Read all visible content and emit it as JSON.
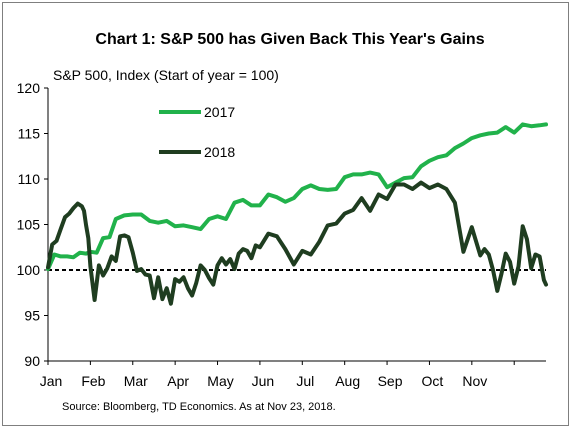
{
  "chart_data": {
    "type": "line",
    "title": "Chart 1: S&P 500 has Given Back This Year's Gains",
    "ylabel": "S&P 500, Index (Start of year = 100)",
    "xlabel": "",
    "ylim": [
      90,
      120
    ],
    "yticks": [
      "90",
      "95",
      "100",
      "105",
      "110",
      "115",
      "120"
    ],
    "xticks": [
      "Jan",
      "Feb",
      "Mar",
      "Apr",
      "May",
      "Jun",
      "Jul",
      "Aug",
      "Sep",
      "Oct",
      "Nov"
    ],
    "xlim": [
      0,
      11.75
    ],
    "reference_line": 100,
    "legend_placement": "top-left",
    "source": "Source: Bloomberg, TD Economics. As at Nov 23, 2018.",
    "series": [
      {
        "name": "2017",
        "color": "#21b24b",
        "x": [
          0,
          0.15,
          0.3,
          0.45,
          0.6,
          0.75,
          0.9,
          1.0,
          1.15,
          1.3,
          1.45,
          1.6,
          1.8,
          2.0,
          2.2,
          2.4,
          2.6,
          2.8,
          3.0,
          3.2,
          3.4,
          3.6,
          3.8,
          4.0,
          4.2,
          4.4,
          4.6,
          4.8,
          5.0,
          5.2,
          5.4,
          5.6,
          5.8,
          6.0,
          6.2,
          6.4,
          6.6,
          6.8,
          7.0,
          7.2,
          7.4,
          7.6,
          7.8,
          8.0,
          8.2,
          8.4,
          8.6,
          8.8,
          9.0,
          9.2,
          9.4,
          9.6,
          9.8,
          10.0,
          10.2,
          10.4,
          10.6,
          10.8,
          11.0,
          11.2,
          11.4,
          11.6,
          11.75
        ],
        "values": [
          100.1,
          101.7,
          101.5,
          101.5,
          101.4,
          101.9,
          101.8,
          102.0,
          101.9,
          103.5,
          103.6,
          105.6,
          106.0,
          106.1,
          106.1,
          105.4,
          105.2,
          105.4,
          104.8,
          104.9,
          104.7,
          104.5,
          105.6,
          105.9,
          105.6,
          107.4,
          107.7,
          107.1,
          107.1,
          108.3,
          108.0,
          107.5,
          107.9,
          108.9,
          109.3,
          108.9,
          108.8,
          108.9,
          110.2,
          110.5,
          110.5,
          110.7,
          110.5,
          109.1,
          109.6,
          110.1,
          110.2,
          111.4,
          112.0,
          112.4,
          112.6,
          113.4,
          113.9,
          114.5,
          114.8,
          115.0,
          115.1,
          115.7,
          115.1,
          116.0,
          115.8,
          115.9,
          116.0
        ]
      },
      {
        "name": "2018",
        "color": "#1f3d20",
        "x": [
          0,
          0.1,
          0.2,
          0.3,
          0.4,
          0.5,
          0.6,
          0.7,
          0.8,
          0.85,
          0.9,
          0.95,
          1.0,
          1.1,
          1.2,
          1.3,
          1.4,
          1.5,
          1.6,
          1.7,
          1.8,
          1.9,
          2.0,
          2.1,
          2.2,
          2.3,
          2.4,
          2.5,
          2.6,
          2.7,
          2.8,
          2.9,
          3.0,
          3.1,
          3.2,
          3.3,
          3.4,
          3.5,
          3.6,
          3.7,
          3.8,
          3.9,
          4.0,
          4.1,
          4.2,
          4.3,
          4.4,
          4.5,
          4.6,
          4.7,
          4.8,
          4.9,
          5.0,
          5.2,
          5.4,
          5.6,
          5.8,
          6.0,
          6.2,
          6.4,
          6.6,
          6.8,
          7.0,
          7.2,
          7.4,
          7.6,
          7.8,
          8.0,
          8.2,
          8.4,
          8.6,
          8.8,
          9.0,
          9.2,
          9.4,
          9.6,
          9.8,
          10.0,
          10.2,
          10.3,
          10.4,
          10.5,
          10.6,
          10.7,
          10.8,
          10.9,
          11.0,
          11.1,
          11.2,
          11.3,
          11.4,
          11.5,
          11.6,
          11.7,
          11.75
        ],
        "values": [
          100.3,
          102.8,
          103.2,
          104.5,
          105.8,
          106.2,
          106.8,
          107.3,
          107.0,
          106.5,
          104.9,
          103.5,
          100.4,
          96.7,
          100.5,
          99.4,
          100.2,
          101.5,
          101.0,
          103.7,
          103.8,
          103.6,
          101.9,
          99.9,
          100.1,
          99.5,
          99.4,
          96.9,
          99.2,
          96.8,
          98.0,
          96.3,
          99.0,
          98.7,
          99.2,
          98.0,
          97.2,
          98.6,
          100.5,
          100.0,
          99.1,
          98.4,
          100.5,
          101.3,
          100.6,
          101.2,
          100.1,
          101.8,
          102.3,
          102.1,
          101.3,
          102.7,
          102.5,
          104.0,
          103.7,
          102.3,
          100.6,
          102.1,
          101.7,
          103.1,
          104.9,
          105.1,
          106.2,
          106.6,
          107.9,
          106.5,
          108.3,
          107.8,
          109.4,
          109.4,
          108.9,
          109.6,
          109.0,
          109.4,
          108.9,
          107.4,
          102.0,
          104.7,
          101.6,
          102.3,
          101.7,
          100.0,
          97.7,
          99.6,
          101.8,
          100.9,
          98.5,
          100.4,
          104.8,
          103.4,
          100.2,
          101.7,
          101.5,
          98.9,
          98.4
        ]
      }
    ]
  }
}
